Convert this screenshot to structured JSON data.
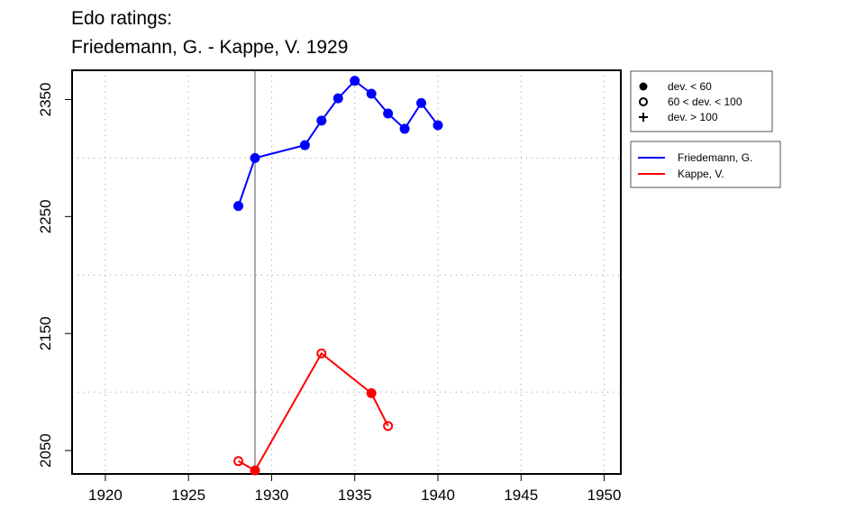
{
  "chart_data": {
    "type": "line",
    "title_line1": "Edo ratings:",
    "title_line2": "Friedemann, G. - Kappe, V. 1929",
    "xlabel": "",
    "ylabel": "",
    "xlim": [
      1918,
      1951
    ],
    "ylim": [
      2030,
      2375
    ],
    "x_ticks": [
      1920,
      1925,
      1930,
      1935,
      1940,
      1945,
      1950
    ],
    "y_ticks": [
      2050,
      2150,
      2250,
      2350
    ],
    "x_grid": [
      1920,
      1925,
      1930,
      1935,
      1940,
      1945,
      1950
    ],
    "y_grid": [
      2100,
      2200,
      2300
    ],
    "grid": true,
    "vertical_line_x": 1929,
    "symbol_legend": [
      {
        "symbol": "filled-circle",
        "label": "dev. < 60"
      },
      {
        "symbol": "open-circle",
        "label": "60 < dev. < 100"
      },
      {
        "symbol": "plus",
        "label": "dev. > 100"
      }
    ],
    "series": [
      {
        "name": "Friedemann, G.",
        "color": "#0000ff",
        "points": [
          {
            "x": 1928,
            "y": 2259,
            "symbol": "filled-circle"
          },
          {
            "x": 1929,
            "y": 2300,
            "symbol": "filled-circle"
          },
          {
            "x": 1932,
            "y": 2311,
            "symbol": "filled-circle"
          },
          {
            "x": 1933,
            "y": 2332,
            "symbol": "filled-circle"
          },
          {
            "x": 1934,
            "y": 2351,
            "symbol": "filled-circle"
          },
          {
            "x": 1935,
            "y": 2366,
            "symbol": "filled-circle"
          },
          {
            "x": 1936,
            "y": 2355,
            "symbol": "filled-circle"
          },
          {
            "x": 1937,
            "y": 2338,
            "symbol": "filled-circle"
          },
          {
            "x": 1938,
            "y": 2325,
            "symbol": "filled-circle"
          },
          {
            "x": 1939,
            "y": 2347,
            "symbol": "filled-circle"
          },
          {
            "x": 1940,
            "y": 2328,
            "symbol": "filled-circle"
          }
        ]
      },
      {
        "name": "Kappe, V.",
        "color": "#ff0000",
        "points": [
          {
            "x": 1928,
            "y": 2041,
            "symbol": "open-circle"
          },
          {
            "x": 1929,
            "y": 2033,
            "symbol": "filled-circle"
          },
          {
            "x": 1933,
            "y": 2133,
            "symbol": "open-circle"
          },
          {
            "x": 1936,
            "y": 2099,
            "symbol": "filled-circle"
          },
          {
            "x": 1937,
            "y": 2071,
            "symbol": "open-circle"
          }
        ]
      }
    ]
  }
}
